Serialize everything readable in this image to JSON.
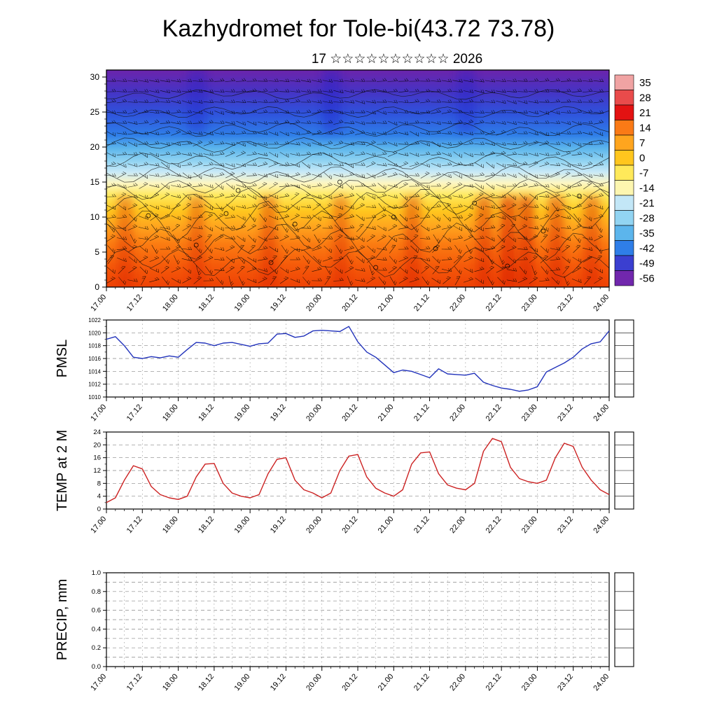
{
  "header": {
    "title": "Kazhydromet for Tole-bi(43.72 73.78)",
    "subtitle": "17 ☆☆☆☆☆☆☆☆☆☆ 2026"
  },
  "chart_labels": {
    "pmsl": "PMSL",
    "temp": "TEMP at 2 M",
    "precip": "PRECIP, mm"
  },
  "time_axis": {
    "labels": [
      "17.00",
      "17.12",
      "18.00",
      "18.12",
      "19.00",
      "19.12",
      "20.00",
      "20.12",
      "21.00",
      "21.12",
      "22.00",
      "22.12",
      "23.00",
      "23.12",
      "24.00"
    ],
    "hours_total": 168,
    "major_step_hours": 12,
    "minor_step_hours": 3
  },
  "chart_data": [
    {
      "type": "heatmap",
      "name": "upper-air-temperature-cross-section",
      "overlay": "wind barbs, contour lines, calm-wind circles",
      "ylim": [
        0,
        30
      ],
      "yticks": [
        0,
        5,
        10,
        15,
        20,
        25,
        30
      ],
      "gradient_stops": [
        {
          "offset": 0.0,
          "color": "#6b24ab"
        },
        {
          "offset": 0.1,
          "color": "#4633c4"
        },
        {
          "offset": 0.2,
          "color": "#2f52dc"
        },
        {
          "offset": 0.3,
          "color": "#2f7ee8"
        },
        {
          "offset": 0.36,
          "color": "#5cb5ec"
        },
        {
          "offset": 0.42,
          "color": "#92d4f2"
        },
        {
          "offset": 0.47,
          "color": "#c9e9f7"
        },
        {
          "offset": 0.52,
          "color": "#fdf6c4"
        },
        {
          "offset": 0.58,
          "color": "#ffe95a"
        },
        {
          "offset": 0.65,
          "color": "#ffc61e"
        },
        {
          "offset": 0.72,
          "color": "#ffa51e"
        },
        {
          "offset": 0.8,
          "color": "#fb7d12"
        },
        {
          "offset": 0.9,
          "color": "#f55a0a"
        },
        {
          "offset": 1.0,
          "color": "#ee4205"
        }
      ],
      "colorbar": {
        "labels": [
          35,
          28,
          21,
          14,
          7,
          0,
          -7,
          -14,
          -21,
          -28,
          -35,
          -42,
          -49,
          -56
        ],
        "colors": [
          "#f0a3a3",
          "#e94b4b",
          "#e31212",
          "#fa7a16",
          "#ffa51e",
          "#ffc61e",
          "#ffe95a",
          "#fdf6b0",
          "#c3e7f7",
          "#92d4f2",
          "#5cb5ec",
          "#2f7ee8",
          "#3b3fd0",
          "#7127ad"
        ]
      }
    },
    {
      "type": "line",
      "name": "PMSL",
      "color": "#2233bb",
      "ylim": [
        1010,
        1022
      ],
      "yticks": [
        1010,
        1012,
        1014,
        1016,
        1018,
        1020,
        1022
      ],
      "x_step_hours": 3,
      "values": [
        1019.0,
        1019.4,
        1018.0,
        1016.2,
        1016.0,
        1016.3,
        1016.1,
        1016.4,
        1016.2,
        1017.4,
        1018.5,
        1018.4,
        1018.0,
        1018.4,
        1018.5,
        1018.2,
        1017.9,
        1018.3,
        1018.4,
        1019.8,
        1019.9,
        1019.3,
        1019.5,
        1020.3,
        1020.4,
        1020.3,
        1020.2,
        1021.0,
        1018.6,
        1017.0,
        1016.2,
        1015.0,
        1013.8,
        1014.2,
        1014.0,
        1013.5,
        1013.0,
        1014.4,
        1013.6,
        1013.5,
        1013.4,
        1013.7,
        1012.3,
        1011.8,
        1011.4,
        1011.2,
        1010.9,
        1011.1,
        1011.6,
        1013.9,
        1014.6,
        1015.3,
        1016.2,
        1017.5,
        1018.3,
        1018.6,
        1020.3
      ]
    },
    {
      "type": "line",
      "name": "TEMP at 2 M",
      "color": "#cc2222",
      "ylim": [
        0,
        24
      ],
      "yticks": [
        0,
        4,
        8,
        12,
        16,
        20,
        24
      ],
      "x_step_hours": 3,
      "values": [
        2.0,
        3.5,
        9.0,
        13.5,
        12.5,
        7.0,
        4.5,
        3.5,
        3.0,
        4.0,
        10.0,
        14.0,
        14.2,
        8.0,
        5.0,
        4.0,
        3.5,
        4.5,
        11.0,
        15.5,
        16.0,
        9.0,
        6.0,
        5.0,
        3.5,
        5.0,
        12.0,
        16.5,
        17.0,
        10.0,
        6.5,
        5.0,
        4.0,
        6.0,
        14.0,
        17.5,
        17.8,
        11.0,
        7.5,
        6.5,
        6.0,
        8.0,
        18.0,
        22.0,
        21.0,
        13.0,
        9.5,
        8.5,
        8.0,
        9.0,
        16.0,
        20.5,
        19.5,
        13.0,
        9.0,
        6.0,
        4.5
      ]
    },
    {
      "type": "line",
      "name": "PRECIP, mm",
      "color": "#228822",
      "ylim": [
        0,
        1
      ],
      "yticks": [
        0.0,
        0.2,
        0.4,
        0.6,
        0.8,
        1.0
      ],
      "ytick_labels": [
        "0.0",
        "0.2",
        "0.4",
        "0.6",
        "0.8",
        "1.0"
      ],
      "x_step_hours": 3,
      "values": []
    }
  ]
}
